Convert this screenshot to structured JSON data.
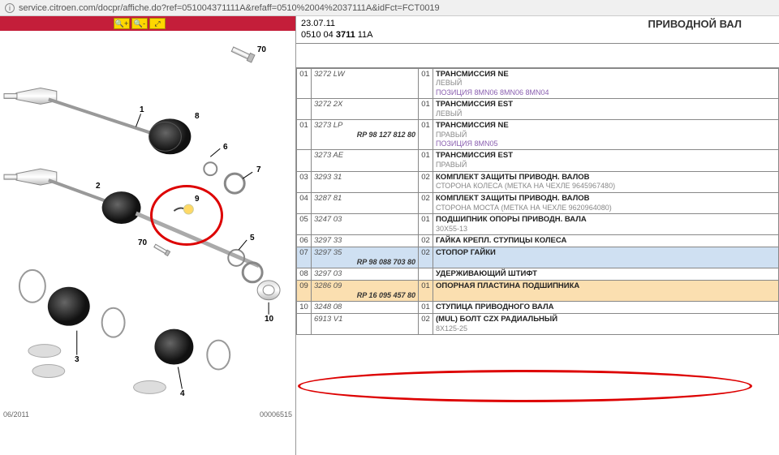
{
  "url": "service.citroen.com/docpr/affiche.do?ref=051004371111A&refaff=0510%2004%2037111A&idFct=FCT0019",
  "header": {
    "date": "23.07.11",
    "code_prefix": "0510 04 ",
    "code_bold": "3711",
    "code_suffix": " 11A",
    "title": "ПРИВОДНОЙ ВАЛ"
  },
  "diagram": {
    "footer_date": "06/2011",
    "footer_code": "00006515",
    "callouts": {
      "c70a": "70",
      "c1": "1",
      "c8": "8",
      "c2": "2",
      "c9": "9",
      "c6": "6",
      "c7": "7",
      "c5": "5",
      "c70b": "70",
      "c10": "10",
      "c3": "3",
      "c4": "4"
    }
  },
  "rows": [
    {
      "idx": "01",
      "ref": "3272 LW",
      "rp": "",
      "qty": "01",
      "title": "ТРАНСМИССИЯ NE",
      "sub": "ЛЕВЫЙ",
      "sub2": "ПОЗИЦИЯ 8MN06 8MN06 8MN04",
      "hl": ""
    },
    {
      "idx": "",
      "ref": "3272 2X",
      "rp": "",
      "qty": "01",
      "title": "ТРАНСМИССИЯ EST",
      "sub": "ЛЕВЫЙ",
      "sub2": "",
      "hl": ""
    },
    {
      "idx": "01",
      "ref": "3273 LP",
      "rp": "RP 98 127 812 80",
      "qty": "01",
      "title": "ТРАНСМИССИЯ NE",
      "sub": "ПРАВЫЙ",
      "sub2": "ПОЗИЦИЯ 8MN05",
      "hl": ""
    },
    {
      "idx": "",
      "ref": "3273 AE",
      "rp": "",
      "qty": "01",
      "title": "ТРАНСМИССИЯ EST",
      "sub": "ПРАВЫЙ",
      "sub2": "",
      "hl": ""
    },
    {
      "idx": "03",
      "ref": "3293 31",
      "rp": "",
      "qty": "02",
      "title": "КОМПЛЕКТ ЗАЩИТЫ ПРИВОДН. ВАЛОВ",
      "sub": "СТОРОНА КОЛЕСА (МЕТКА НА ЧЕХЛЕ 9645967480)",
      "sub2": "",
      "hl": ""
    },
    {
      "idx": "04",
      "ref": "3287 81",
      "rp": "",
      "qty": "02",
      "title": "КОМПЛЕКТ ЗАЩИТЫ ПРИВОДН. ВАЛОВ",
      "sub": "СТОРОНА МОСТА (МЕТКА НА ЧЕХЛЕ 9620964080)",
      "sub2": "",
      "hl": ""
    },
    {
      "idx": "05",
      "ref": "3247 03",
      "rp": "",
      "qty": "01",
      "title": "ПОДШИПНИК ОПОРЫ ПРИВОДН. ВАЛА",
      "sub": "30X55-13",
      "sub2": "",
      "hl": ""
    },
    {
      "idx": "06",
      "ref": "3297 33",
      "rp": "",
      "qty": "02",
      "title": "ГАЙКА КРЕПЛ. СТУПИЦЫ КОЛЕСА",
      "sub": "",
      "sub2": "",
      "hl": ""
    },
    {
      "idx": "07",
      "ref": "3297 35",
      "rp": "RP 98 088 703 80",
      "qty": "02",
      "title": "СТОПОР ГАЙКИ",
      "sub": "",
      "sub2": "",
      "hl": "blue"
    },
    {
      "idx": "08",
      "ref": "3297 03",
      "rp": "",
      "qty": "",
      "title": "УДЕРЖИВАЮЩИЙ ШТИФТ",
      "sub": "",
      "sub2": "",
      "hl": ""
    },
    {
      "idx": "09",
      "ref": "3286 09",
      "rp": "RP 16 095 457 80",
      "qty": "01",
      "title": "ОПОРНАЯ ПЛАСТИНА ПОДШИПНИКА",
      "sub": "",
      "sub2": "",
      "hl": "orange"
    },
    {
      "idx": "10",
      "ref": "3248 08",
      "rp": "",
      "qty": "01",
      "title": "СТУПИЦА ПРИВОДНОГО ВАЛА",
      "sub": "",
      "sub2": "",
      "hl": ""
    },
    {
      "idx": "",
      "ref": "6913 V1",
      "rp": "",
      "qty": "02",
      "title": "(MUL) БОЛТ CZX РАДИАЛЬНЫЙ",
      "sub": "8X125-25",
      "sub2": "",
      "hl": ""
    }
  ]
}
